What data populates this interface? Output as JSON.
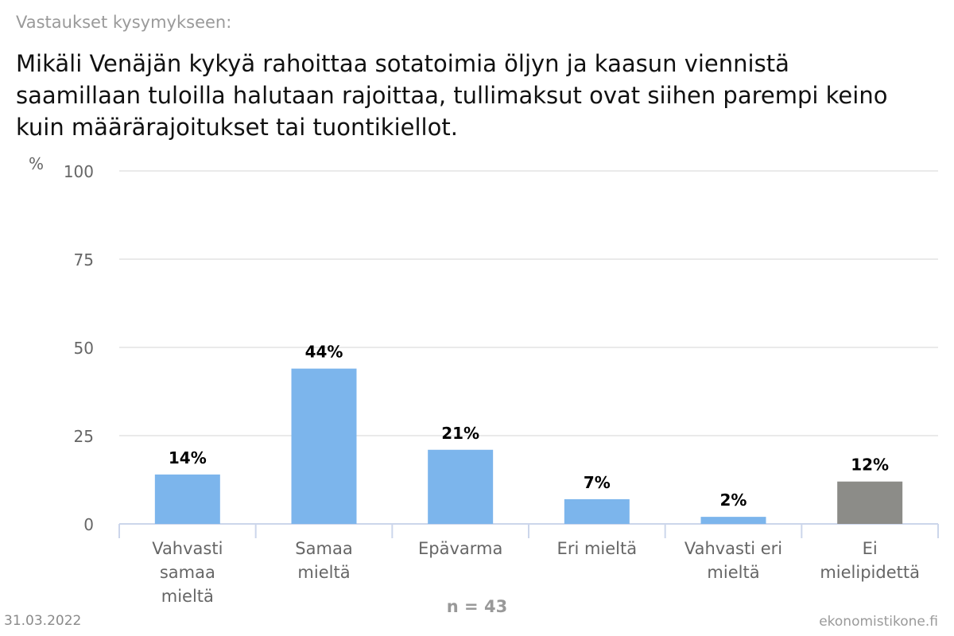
{
  "header": {
    "subtitle": "Vastaukset kysymykseen:",
    "title": "Mikäli Venäjän kykyä rahoittaa sotatoimia öljyn ja kaasun viennistä saamillaan tuloilla halutaan rajoittaa, tullimaksut ovat siihen parempi keino kuin määrärajoitukset tai tuontikiellot."
  },
  "footer": {
    "date": "31.03.2022",
    "n_label": "n = 43",
    "brand": "ekonomistikone.fi"
  },
  "chart_data": {
    "type": "bar",
    "ylabel": "%",
    "ylim": [
      0,
      100
    ],
    "yticks": [
      0,
      25,
      50,
      75,
      100
    ],
    "grid": true,
    "categories": [
      [
        "Vahvasti",
        "samaa",
        "mieltä"
      ],
      [
        "Samaa",
        "mieltä"
      ],
      [
        "Epävarma"
      ],
      [
        "Eri mieltä"
      ],
      [
        "Vahvasti eri",
        "mieltä"
      ],
      [
        "Ei",
        "mielipidettä"
      ]
    ],
    "values": [
      14,
      44,
      21,
      7,
      2,
      12
    ],
    "value_labels": [
      "14%",
      "44%",
      "21%",
      "7%",
      "2%",
      "12%"
    ],
    "colors": [
      "#7cb5ec",
      "#7cb5ec",
      "#7cb5ec",
      "#7cb5ec",
      "#7cb5ec",
      "#8c8c88"
    ],
    "grid_color": "#e3e3e3",
    "axis_color": "#ccd6eb"
  }
}
